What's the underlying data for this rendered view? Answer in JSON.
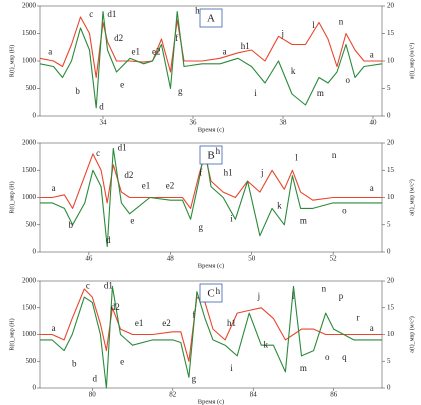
{
  "chart_data": [
    {
      "type": "line",
      "title": "A",
      "x_label": "Время (с)",
      "y_label": "R(t)_мвр (Н)",
      "y2_label": "a(t)_мвр (м/с²)",
      "xlim": [
        32.6,
        40.2
      ],
      "xticks": [
        34,
        36,
        38,
        40
      ],
      "ylim": [
        0,
        2000
      ],
      "yticks": [
        0,
        500,
        1000,
        1500,
        2000
      ],
      "y2lim": [
        0,
        20
      ],
      "y2ticks": [
        0,
        5,
        10,
        15,
        20
      ],
      "x": [
        32.6,
        32.9,
        33.1,
        33.3,
        33.5,
        33.7,
        33.85,
        34.0,
        34.1,
        34.3,
        34.6,
        34.9,
        35.1,
        35.3,
        35.5,
        35.65,
        35.8,
        36.2,
        36.6,
        37.0,
        37.3,
        37.6,
        37.9,
        38.2,
        38.5,
        38.8,
        39.0,
        39.2,
        39.4,
        39.6,
        39.8,
        40.2
      ],
      "series": [
        {
          "name": "R(t)",
          "color": "#e8452c",
          "values": [
            1050,
            1000,
            900,
            1300,
            1800,
            1500,
            700,
            1700,
            1350,
            1000,
            1000,
            980,
            1000,
            1400,
            800,
            1750,
            1000,
            1000,
            1050,
            1150,
            1200,
            1000,
            1450,
            1300,
            1300,
            1700,
            1400,
            900,
            1500,
            1200,
            1000,
            1000
          ]
        },
        {
          "name": "a(t)",
          "color": "#2a8a3a",
          "axis": "y2",
          "values": [
            9.5,
            9,
            7,
            10,
            16,
            12,
            1.5,
            19,
            12,
            8,
            10.5,
            9.5,
            10,
            13,
            5,
            19,
            9,
            9.5,
            9.5,
            10.5,
            9,
            6,
            10,
            4,
            2,
            7,
            6,
            8,
            13,
            7,
            9,
            9.5
          ]
        }
      ],
      "annotations": [
        "a",
        "b",
        "c",
        "d",
        "d1",
        "d2",
        "e",
        "e1",
        "e2",
        "f",
        "g",
        "h",
        "a",
        "h1",
        "i",
        "j",
        "k",
        "l",
        "m",
        "n",
        "o",
        "a"
      ]
    },
    {
      "type": "line",
      "title": "B",
      "x_label": "Время (с)",
      "y_label": "R(t)_мвр (Н)",
      "y2_label": "a(t)_мвр (м/с²)",
      "xlim": [
        44.8,
        53.2
      ],
      "xticks": [
        46,
        48,
        50,
        52
      ],
      "ylim": [
        0,
        2000
      ],
      "yticks": [
        0,
        500,
        1000,
        1500,
        2000
      ],
      "y2lim": [
        0,
        20
      ],
      "y2ticks": [
        0,
        5,
        10,
        15,
        20
      ],
      "x": [
        44.8,
        45.1,
        45.4,
        45.6,
        45.9,
        46.1,
        46.3,
        46.45,
        46.6,
        46.8,
        47.0,
        47.5,
        48.0,
        48.3,
        48.5,
        48.7,
        48.85,
        49.0,
        49.3,
        49.6,
        49.9,
        50.2,
        50.5,
        50.8,
        51.0,
        51.2,
        51.5,
        52.0,
        52.5,
        53.2
      ],
      "series": [
        {
          "name": "R(t)",
          "color": "#e8452c",
          "values": [
            1000,
            1000,
            1050,
            800,
            1400,
            1800,
            1500,
            900,
            1600,
            1100,
            1000,
            1000,
            1000,
            1000,
            800,
            1400,
            1800,
            1300,
            1100,
            1000,
            1300,
            1100,
            1500,
            1150,
            1500,
            1100,
            950,
            1000,
            1000,
            1000
          ]
        },
        {
          "name": "a(t)",
          "color": "#2a8a3a",
          "axis": "y2",
          "values": [
            9,
            9,
            8,
            5,
            9,
            15,
            12,
            1,
            19,
            9,
            7,
            10,
            9.5,
            9.5,
            6,
            13,
            19,
            12,
            10,
            6,
            13,
            3,
            8,
            5,
            14,
            8,
            8,
            9,
            9,
            9
          ]
        }
      ],
      "annotations": [
        "a",
        "b",
        "c",
        "d",
        "d1",
        "d2",
        "e",
        "e1",
        "e2",
        "f",
        "g",
        "h",
        "h1",
        "i",
        "j",
        "k",
        "l",
        "m",
        "n",
        "o",
        "a"
      ]
    },
    {
      "type": "line",
      "title": "C",
      "x_label": "Время (с)",
      "y_label": "R(t)_мвр (Н)",
      "y2_label": "a(t)_мвр (м/с²)",
      "xlim": [
        78.7,
        87.2
      ],
      "xticks": [
        80,
        82,
        84,
        86
      ],
      "ylim": [
        0,
        2000
      ],
      "yticks": [
        0,
        500,
        1000,
        1500,
        2000
      ],
      "y2lim": [
        0,
        20
      ],
      "y2ticks": [
        0,
        5,
        10,
        15,
        20
      ],
      "x": [
        78.7,
        79.0,
        79.3,
        79.5,
        79.8,
        80.0,
        80.2,
        80.35,
        80.5,
        80.7,
        81.0,
        81.5,
        82.0,
        82.2,
        82.4,
        82.6,
        82.8,
        83.0,
        83.3,
        83.6,
        83.9,
        84.2,
        84.5,
        84.8,
        85.0,
        85.2,
        85.5,
        85.8,
        86.0,
        86.5,
        87.2
      ],
      "series": [
        {
          "name": "R(t)",
          "color": "#e8452c",
          "values": [
            1000,
            1000,
            900,
            1300,
            1850,
            1700,
            1200,
            700,
            1500,
            1100,
            1000,
            1000,
            1050,
            1050,
            500,
            1700,
            1600,
            1100,
            900,
            1400,
            1450,
            1500,
            1300,
            900,
            1000,
            1100,
            1100,
            1000,
            1000,
            1000,
            1000
          ]
        },
        {
          "name": "a(t)",
          "color": "#2a8a3a",
          "axis": "y2",
          "values": [
            9,
            9,
            7,
            10,
            17,
            16,
            10,
            0,
            19,
            10,
            8,
            9,
            9,
            8.5,
            2,
            18,
            13,
            9,
            8,
            6,
            14,
            8,
            8,
            3,
            19,
            6,
            7,
            14,
            11,
            9,
            9
          ]
        }
      ],
      "annotations": [
        "a",
        "b",
        "c",
        "d",
        "d1",
        "d2",
        "e",
        "e1",
        "e2",
        "f",
        "g",
        "h",
        "h1",
        "i",
        "j",
        "k",
        "l",
        "m",
        "n",
        "o",
        "p",
        "q",
        "r",
        "a"
      ]
    }
  ]
}
